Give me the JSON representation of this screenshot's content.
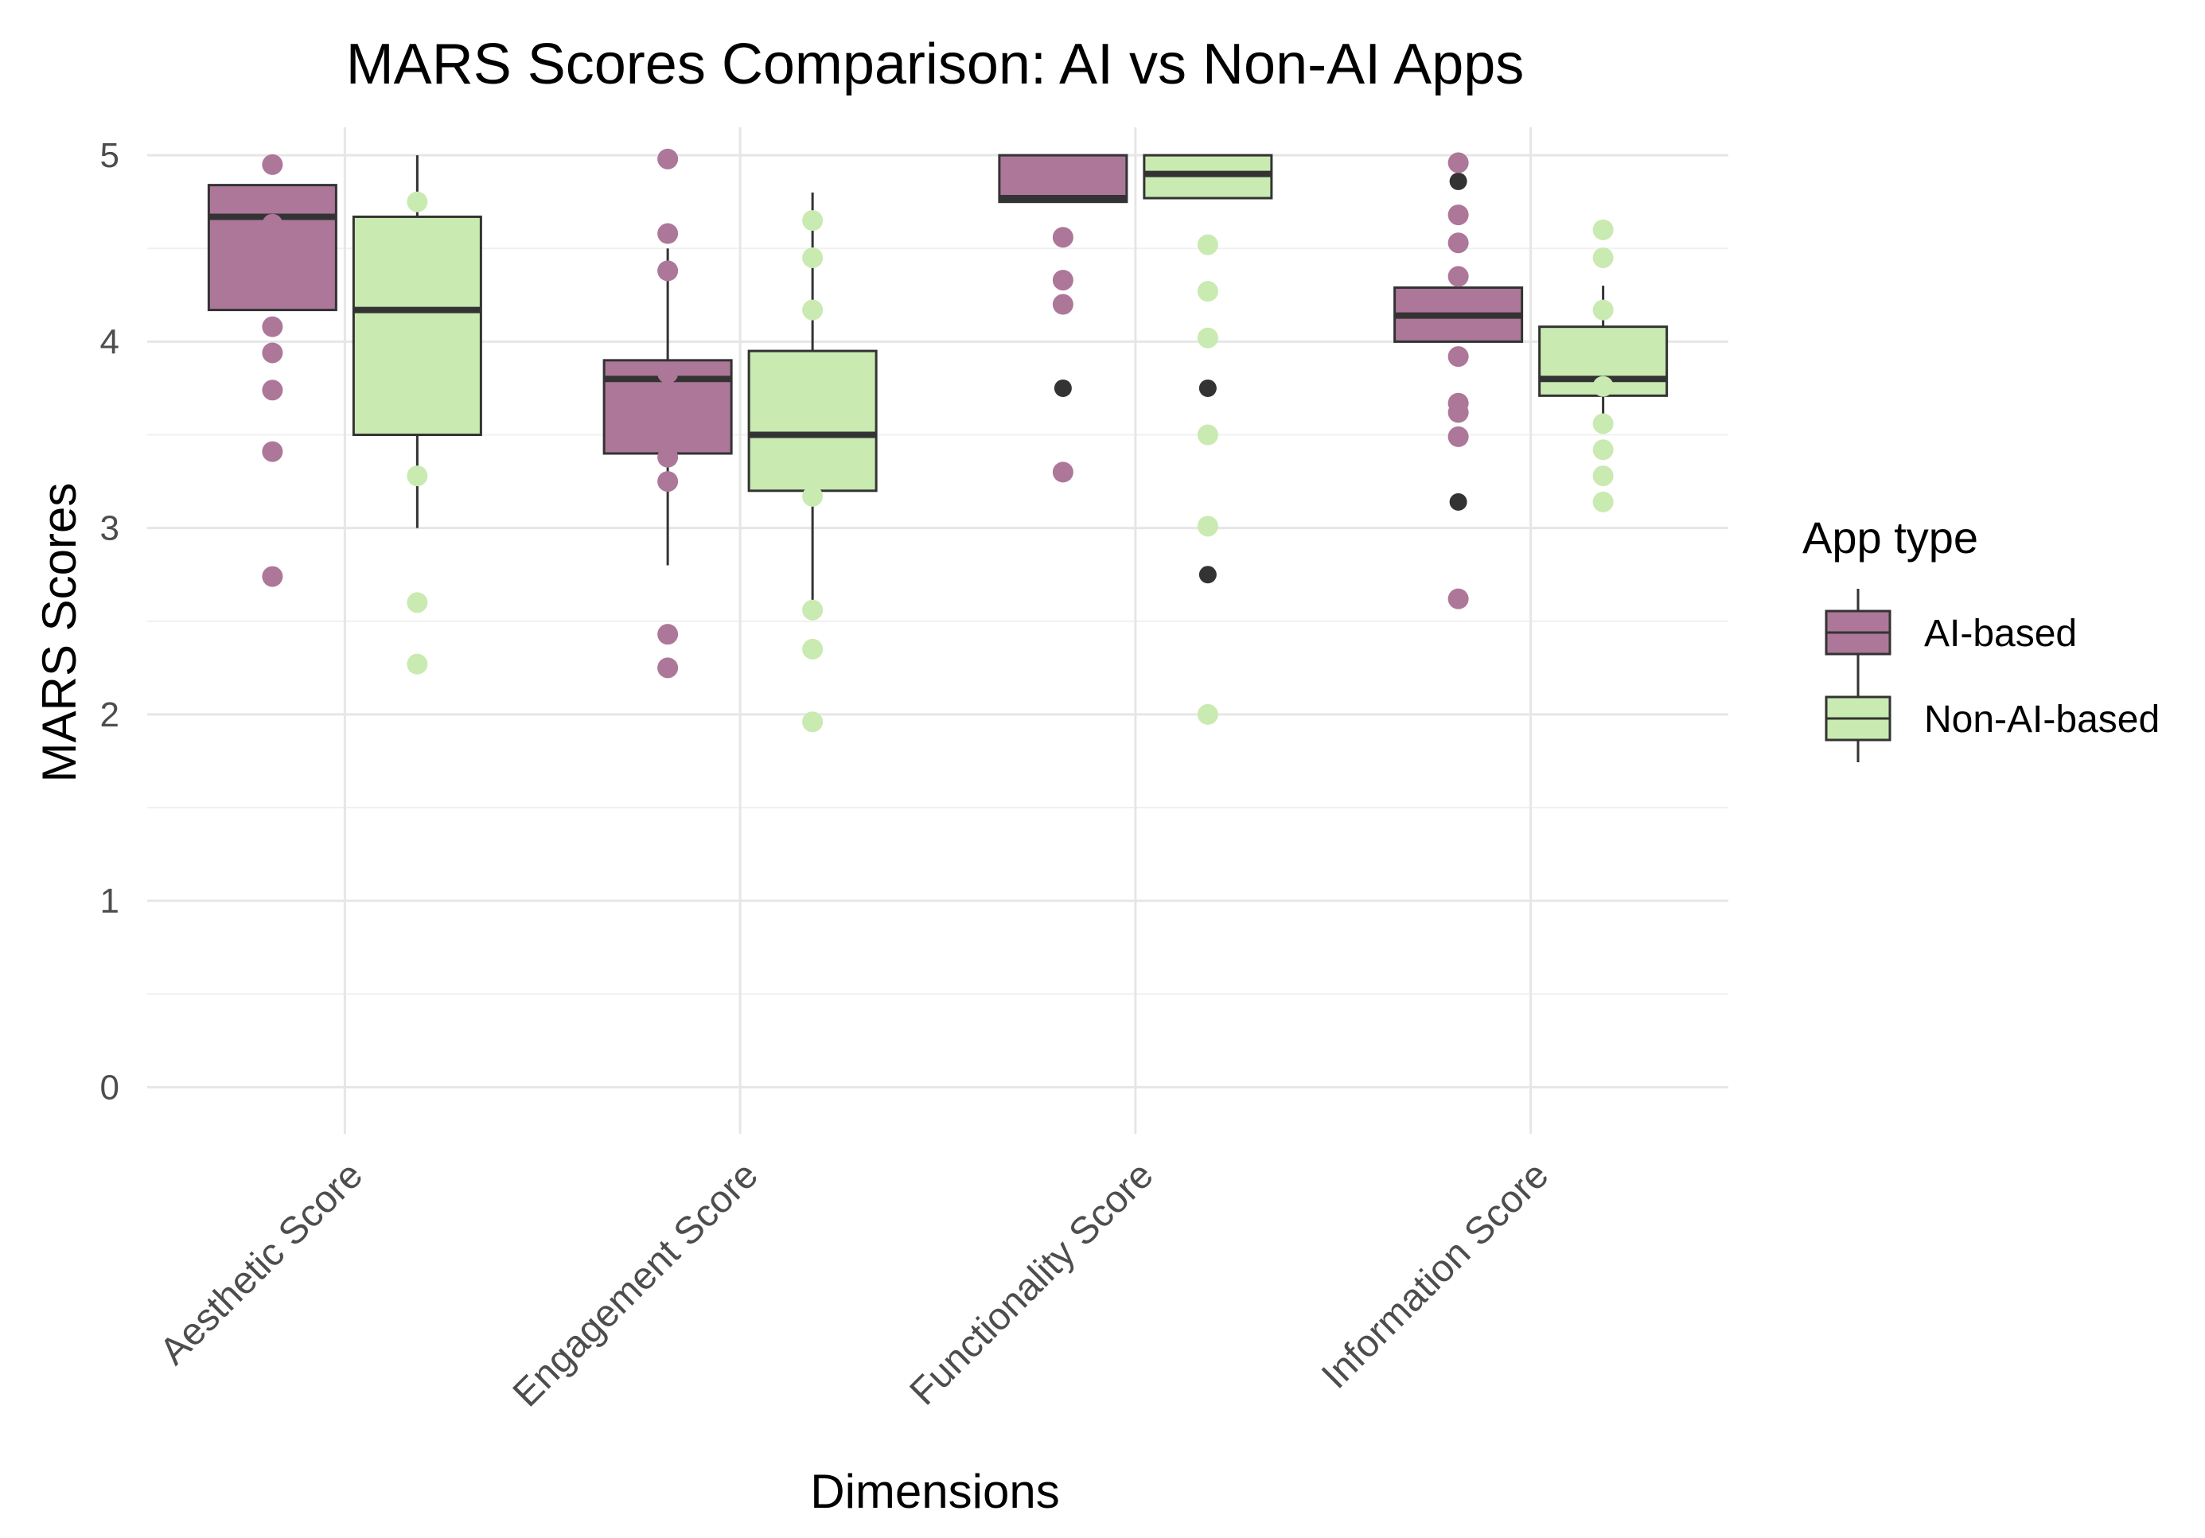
{
  "chart_data": {
    "type": "boxplot",
    "title": "MARS Scores Comparison: AI vs Non-AI Apps",
    "xlabel": "Dimensions",
    "ylabel": "MARS Scores",
    "ylim": [
      -0.25,
      5.15
    ],
    "yticks": [
      0,
      1,
      2,
      3,
      4,
      5
    ],
    "grid": true,
    "legend": {
      "title": "App type",
      "position": "right"
    },
    "categories": [
      "Aesthetic Score",
      "Engagement Score",
      "Functionality Score",
      "Information Score"
    ],
    "series": [
      {
        "name": "AI-based",
        "color": "#ad7799",
        "boxes": [
          {
            "whisker_low": 4.17,
            "q1": 4.17,
            "median": 4.67,
            "q3": 4.84,
            "whisker_high": 4.84,
            "outliers": [],
            "jitter": [
              4.95,
              4.63,
              4.08,
              3.94,
              3.74,
              3.41,
              2.74
            ]
          },
          {
            "whisker_low": 2.8,
            "q1": 3.4,
            "median": 3.8,
            "q3": 3.9,
            "whisker_high": 4.5,
            "outliers": [],
            "jitter": [
              4.98,
              4.58,
              4.38,
              3.83,
              3.38,
              3.25,
              2.43,
              2.25
            ]
          },
          {
            "whisker_low": 4.75,
            "q1": 4.75,
            "median": 4.77,
            "q3": 5.0,
            "whisker_high": 5.0,
            "outliers": [
              3.75
            ],
            "jitter": [
              4.56,
              4.33,
              4.2,
              3.3
            ]
          },
          {
            "whisker_low": 4.0,
            "q1": 4.0,
            "median": 4.14,
            "q3": 4.29,
            "whisker_high": 4.29,
            "outliers": [
              4.86,
              3.14
            ],
            "jitter": [
              4.96,
              4.68,
              4.53,
              4.35,
              3.92,
              3.67,
              3.62,
              3.49,
              2.62
            ]
          }
        ]
      },
      {
        "name": "Non-AI-based",
        "color": "#c9eab1",
        "boxes": [
          {
            "whisker_low": 3.0,
            "q1": 3.5,
            "median": 4.17,
            "q3": 4.67,
            "whisker_high": 5.0,
            "outliers": [],
            "jitter": [
              4.75,
              3.28,
              2.6,
              2.27
            ]
          },
          {
            "whisker_low": 2.6,
            "q1": 3.2,
            "median": 3.5,
            "q3": 3.95,
            "whisker_high": 4.8,
            "outliers": [],
            "jitter": [
              4.65,
              4.45,
              4.17,
              3.17,
              2.56,
              2.35,
              1.96
            ]
          },
          {
            "whisker_low": 4.77,
            "q1": 4.77,
            "median": 4.9,
            "q3": 5.0,
            "whisker_high": 5.0,
            "outliers": [
              3.75,
              2.75
            ],
            "jitter": [
              4.52,
              4.27,
              4.02,
              3.5,
              3.01,
              2.0
            ]
          },
          {
            "whisker_low": 3.57,
            "q1": 3.71,
            "median": 3.8,
            "q3": 4.08,
            "whisker_high": 4.3,
            "outliers": [],
            "jitter": [
              4.6,
              4.45,
              4.17,
              3.76,
              3.56,
              3.42,
              3.28,
              3.14
            ]
          }
        ]
      }
    ]
  }
}
